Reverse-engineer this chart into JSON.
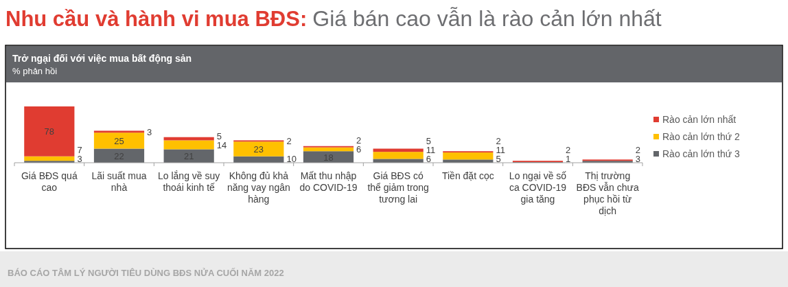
{
  "chart_data": {
    "type": "bar",
    "stacked": true,
    "title": "Nhu cầu và hành vi mua BĐS:",
    "subtitle": "Giá bán cao vẫn là rào cản lớn nhất",
    "ylabel": "% phản hồi",
    "annotations": [
      "Trở ngại đối với việc mua bất động sản",
      "BÁO CÁO TÂM LÝ NGƯỜI TIÊU DÙNG BĐS NỬA CUỐI NĂM 2022"
    ],
    "categories": [
      "Giá BĐS quá cao",
      "Lãi suất mua nhà",
      "Lo lắng về suy thoái kinh tế",
      "Không đủ khả năng vay ngân hàng",
      "Mất thu nhập do COVID-19",
      "Giá BĐS có thể giảm trong tương lai",
      "Tiền đặt cọc",
      "Lo ngại về số ca COVID-19 gia tăng",
      "Thị trường BĐS vẫn chưa phục hồi từ dịch"
    ],
    "series": [
      {
        "name": "Rào cản lớn thứ 3",
        "color": "#63666a",
        "values": [
          3,
          22,
          21,
          10,
          18,
          6,
          5,
          1,
          3
        ]
      },
      {
        "name": "Rào cản lớn thứ 2",
        "color": "#ffc000",
        "values": [
          7,
          25,
          14,
          23,
          6,
          11,
          11,
          null,
          null
        ]
      },
      {
        "name": "Rào cản lớn nhất",
        "color": "#e03c31",
        "values": [
          78,
          3,
          5,
          2,
          2,
          5,
          2,
          2,
          2
        ]
      }
    ],
    "data_labels": true,
    "legend": "right"
  }
}
